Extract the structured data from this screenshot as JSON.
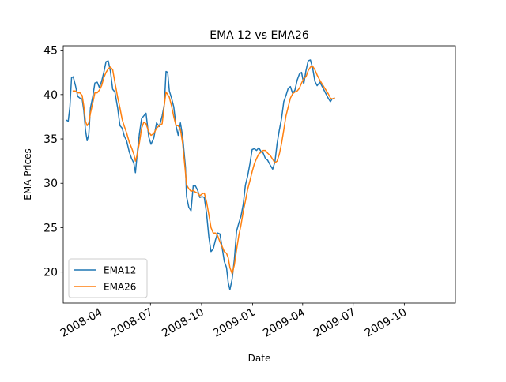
{
  "chart_data": {
    "type": "line",
    "title": "EMA 12 vs EMA26",
    "xlabel": "Date",
    "ylabel": "EMA Prices",
    "x_range": [
      "2008-01-26",
      "2010-01-01"
    ],
    "ylim": [
      16.5,
      45.5
    ],
    "yticks": [
      20,
      25,
      30,
      35,
      40,
      45
    ],
    "xticks": [
      {
        "date": "2008-04-01",
        "label": "2008-04"
      },
      {
        "date": "2008-07-01",
        "label": "2008-07"
      },
      {
        "date": "2008-10-01",
        "label": "2008-10"
      },
      {
        "date": "2009-01-01",
        "label": "2009-01"
      },
      {
        "date": "2009-04-01",
        "label": "2009-04"
      },
      {
        "date": "2009-07-01",
        "label": "2009-07"
      },
      {
        "date": "2009-10-01",
        "label": "2009-10"
      }
    ],
    "grid": false,
    "legend": "lower-left",
    "series": [
      {
        "name": "EMA12",
        "color": "#1f77b4",
        "points": [
          [
            "2008-02-01",
            37.1
          ],
          [
            "2008-02-04",
            37.0
          ],
          [
            "2008-02-07",
            38.6
          ],
          [
            "2008-02-10",
            41.9
          ],
          [
            "2008-02-13",
            42.0
          ],
          [
            "2008-02-17",
            41.0
          ],
          [
            "2008-02-21",
            39.8
          ],
          [
            "2008-02-25",
            39.6
          ],
          [
            "2008-02-29",
            39.5
          ],
          [
            "2008-03-03",
            38.2
          ],
          [
            "2008-03-06",
            36.0
          ],
          [
            "2008-03-09",
            34.8
          ],
          [
            "2008-03-12",
            35.5
          ],
          [
            "2008-03-15",
            38.5
          ],
          [
            "2008-03-19",
            39.7
          ],
          [
            "2008-03-23",
            41.3
          ],
          [
            "2008-03-27",
            41.4
          ],
          [
            "2008-03-31",
            40.8
          ],
          [
            "2008-04-04",
            41.5
          ],
          [
            "2008-04-08",
            42.5
          ],
          [
            "2008-04-12",
            43.7
          ],
          [
            "2008-04-16",
            43.8
          ],
          [
            "2008-04-20",
            42.6
          ],
          [
            "2008-04-24",
            40.6
          ],
          [
            "2008-04-28",
            40.3
          ],
          [
            "2008-05-03",
            38.5
          ],
          [
            "2008-05-07",
            36.5
          ],
          [
            "2008-05-11",
            36.2
          ],
          [
            "2008-05-15",
            35.3
          ],
          [
            "2008-05-19",
            34.8
          ],
          [
            "2008-05-24",
            33.5
          ],
          [
            "2008-05-28",
            32.8
          ],
          [
            "2008-06-01",
            32.3
          ],
          [
            "2008-06-04",
            31.2
          ],
          [
            "2008-06-07",
            33.2
          ],
          [
            "2008-06-11",
            35.5
          ],
          [
            "2008-06-15",
            37.3
          ],
          [
            "2008-06-19",
            37.6
          ],
          [
            "2008-06-23",
            37.9
          ],
          [
            "2008-06-28",
            35.2
          ],
          [
            "2008-07-02",
            34.4
          ],
          [
            "2008-07-07",
            35.1
          ],
          [
            "2008-07-12",
            36.8
          ],
          [
            "2008-07-17",
            36.4
          ],
          [
            "2008-07-22",
            37.6
          ],
          [
            "2008-07-26",
            38.9
          ],
          [
            "2008-07-29",
            42.6
          ],
          [
            "2008-08-01",
            42.5
          ],
          [
            "2008-08-04",
            40.4
          ],
          [
            "2008-08-08",
            39.6
          ],
          [
            "2008-08-12",
            38.6
          ],
          [
            "2008-08-16",
            36.5
          ],
          [
            "2008-08-20",
            35.4
          ],
          [
            "2008-08-24",
            36.8
          ],
          [
            "2008-08-28",
            35.3
          ],
          [
            "2008-09-02",
            31.8
          ],
          [
            "2008-09-04",
            28.5
          ],
          [
            "2008-09-08",
            27.3
          ],
          [
            "2008-09-12",
            26.9
          ],
          [
            "2008-09-16",
            29.7
          ],
          [
            "2008-09-20",
            29.7
          ],
          [
            "2008-09-24",
            29.2
          ],
          [
            "2008-09-28",
            28.4
          ],
          [
            "2008-10-02",
            28.5
          ],
          [
            "2008-10-06",
            28.4
          ],
          [
            "2008-10-10",
            26.6
          ],
          [
            "2008-10-14",
            24.0
          ],
          [
            "2008-10-18",
            22.3
          ],
          [
            "2008-10-22",
            22.6
          ],
          [
            "2008-10-26",
            23.6
          ],
          [
            "2008-10-30",
            24.4
          ],
          [
            "2008-11-03",
            24.3
          ],
          [
            "2008-11-07",
            22.8
          ],
          [
            "2008-11-11",
            21.2
          ],
          [
            "2008-11-15",
            20.5
          ],
          [
            "2008-11-18",
            18.8
          ],
          [
            "2008-11-21",
            18.0
          ],
          [
            "2008-11-25",
            19.2
          ],
          [
            "2008-11-29",
            21.4
          ],
          [
            "2008-12-03",
            24.6
          ],
          [
            "2008-12-07",
            25.5
          ],
          [
            "2008-12-11",
            26.3
          ],
          [
            "2008-12-15",
            27.6
          ],
          [
            "2008-12-19",
            29.8
          ],
          [
            "2008-12-23",
            30.8
          ],
          [
            "2008-12-27",
            32.2
          ],
          [
            "2008-12-31",
            33.8
          ],
          [
            "2009-01-04",
            33.9
          ],
          [
            "2009-01-08",
            33.7
          ],
          [
            "2009-01-12",
            34.0
          ],
          [
            "2009-01-16",
            33.6
          ],
          [
            "2009-01-20",
            33.4
          ],
          [
            "2009-01-24",
            32.8
          ],
          [
            "2009-01-28",
            32.6
          ],
          [
            "2009-02-02",
            32.0
          ],
          [
            "2009-02-06",
            31.6
          ],
          [
            "2009-02-10",
            32.4
          ],
          [
            "2009-02-14",
            34.5
          ],
          [
            "2009-02-18",
            36.0
          ],
          [
            "2009-02-22",
            37.3
          ],
          [
            "2009-02-26",
            39.2
          ],
          [
            "2009-03-02",
            39.9
          ],
          [
            "2009-03-06",
            40.7
          ],
          [
            "2009-03-10",
            40.9
          ],
          [
            "2009-03-14",
            40.1
          ],
          [
            "2009-03-18",
            40.5
          ],
          [
            "2009-03-22",
            41.6
          ],
          [
            "2009-03-26",
            42.3
          ],
          [
            "2009-03-30",
            42.5
          ],
          [
            "2009-04-03",
            41.2
          ],
          [
            "2009-04-07",
            42.7
          ],
          [
            "2009-04-11",
            43.8
          ],
          [
            "2009-04-15",
            43.9
          ],
          [
            "2009-04-19",
            43.0
          ],
          [
            "2009-04-23",
            41.5
          ],
          [
            "2009-04-27",
            41.0
          ],
          [
            "2009-05-02",
            41.4
          ],
          [
            "2009-05-07",
            40.8
          ],
          [
            "2009-05-12",
            40.2
          ],
          [
            "2009-05-17",
            39.6
          ],
          [
            "2009-05-21",
            39.2
          ],
          [
            "2009-05-24",
            39.5
          ],
          [
            "2009-05-28",
            39.6
          ]
        ]
      },
      {
        "name": "EMA26",
        "color": "#ff7f0e",
        "points": [
          [
            "2008-02-13",
            40.4
          ],
          [
            "2008-02-17",
            40.4
          ],
          [
            "2008-02-21",
            40.2
          ],
          [
            "2008-02-25",
            40.2
          ],
          [
            "2008-02-29",
            39.9
          ],
          [
            "2008-03-03",
            38.7
          ],
          [
            "2008-03-06",
            37.0
          ],
          [
            "2008-03-09",
            36.5
          ],
          [
            "2008-03-12",
            36.8
          ],
          [
            "2008-03-15",
            37.9
          ],
          [
            "2008-03-19",
            39.0
          ],
          [
            "2008-03-23",
            40.2
          ],
          [
            "2008-03-27",
            40.2
          ],
          [
            "2008-03-31",
            40.5
          ],
          [
            "2008-04-04",
            41.0
          ],
          [
            "2008-04-08",
            41.9
          ],
          [
            "2008-04-12",
            42.5
          ],
          [
            "2008-04-16",
            42.9
          ],
          [
            "2008-04-20",
            43.1
          ],
          [
            "2008-04-24",
            42.8
          ],
          [
            "2008-04-28",
            41.4
          ],
          [
            "2008-05-03",
            39.7
          ],
          [
            "2008-05-07",
            38.5
          ],
          [
            "2008-05-11",
            37.2
          ],
          [
            "2008-05-15",
            36.4
          ],
          [
            "2008-05-19",
            35.7
          ],
          [
            "2008-05-24",
            34.6
          ],
          [
            "2008-05-28",
            34.0
          ],
          [
            "2008-06-01",
            33.3
          ],
          [
            "2008-06-04",
            32.5
          ],
          [
            "2008-06-07",
            33.2
          ],
          [
            "2008-06-11",
            34.5
          ],
          [
            "2008-06-15",
            36.2
          ],
          [
            "2008-06-19",
            36.9
          ],
          [
            "2008-06-23",
            36.7
          ],
          [
            "2008-06-28",
            35.8
          ],
          [
            "2008-07-02",
            35.4
          ],
          [
            "2008-07-07",
            35.6
          ],
          [
            "2008-07-12",
            36.2
          ],
          [
            "2008-07-17",
            36.5
          ],
          [
            "2008-07-22",
            36.7
          ],
          [
            "2008-07-26",
            38.9
          ],
          [
            "2008-07-29",
            40.3
          ],
          [
            "2008-08-01",
            40.0
          ],
          [
            "2008-08-04",
            39.7
          ],
          [
            "2008-08-08",
            38.7
          ],
          [
            "2008-08-12",
            37.5
          ],
          [
            "2008-08-16",
            36.5
          ],
          [
            "2008-08-20",
            36.5
          ],
          [
            "2008-08-24",
            36.1
          ],
          [
            "2008-08-28",
            34.5
          ],
          [
            "2008-09-02",
            31.2
          ],
          [
            "2008-09-04",
            29.8
          ],
          [
            "2008-09-08",
            29.4
          ],
          [
            "2008-09-12",
            29.1
          ],
          [
            "2008-09-16",
            29.2
          ],
          [
            "2008-09-20",
            29.0
          ],
          [
            "2008-09-24",
            28.9
          ],
          [
            "2008-09-28",
            28.6
          ],
          [
            "2008-10-02",
            28.8
          ],
          [
            "2008-10-06",
            28.9
          ],
          [
            "2008-10-10",
            27.9
          ],
          [
            "2008-10-14",
            26.5
          ],
          [
            "2008-10-18",
            25.0
          ],
          [
            "2008-10-22",
            24.4
          ],
          [
            "2008-10-26",
            24.4
          ],
          [
            "2008-10-30",
            24.1
          ],
          [
            "2008-11-03",
            23.4
          ],
          [
            "2008-11-07",
            22.9
          ],
          [
            "2008-11-11",
            22.3
          ],
          [
            "2008-11-15",
            22.1
          ],
          [
            "2008-11-18",
            21.6
          ],
          [
            "2008-11-21",
            20.5
          ],
          [
            "2008-11-25",
            19.8
          ],
          [
            "2008-11-29",
            20.8
          ],
          [
            "2008-12-03",
            22.5
          ],
          [
            "2008-12-07",
            24.1
          ],
          [
            "2008-12-11",
            25.3
          ],
          [
            "2008-12-15",
            26.8
          ],
          [
            "2008-12-19",
            28.0
          ],
          [
            "2008-12-23",
            29.3
          ],
          [
            "2008-12-27",
            30.3
          ],
          [
            "2008-12-31",
            31.3
          ],
          [
            "2009-01-04",
            32.2
          ],
          [
            "2009-01-08",
            32.8
          ],
          [
            "2009-01-12",
            33.3
          ],
          [
            "2009-01-16",
            33.5
          ],
          [
            "2009-01-20",
            33.7
          ],
          [
            "2009-01-24",
            33.7
          ],
          [
            "2009-01-28",
            33.4
          ],
          [
            "2009-02-02",
            33.1
          ],
          [
            "2009-02-06",
            32.7
          ],
          [
            "2009-02-10",
            32.3
          ],
          [
            "2009-02-14",
            32.5
          ],
          [
            "2009-02-18",
            33.3
          ],
          [
            "2009-02-22",
            34.5
          ],
          [
            "2009-02-26",
            36.0
          ],
          [
            "2009-03-02",
            37.6
          ],
          [
            "2009-03-06",
            38.6
          ],
          [
            "2009-03-10",
            39.6
          ],
          [
            "2009-03-14",
            40.1
          ],
          [
            "2009-03-18",
            40.3
          ],
          [
            "2009-03-22",
            40.4
          ],
          [
            "2009-03-26",
            40.7
          ],
          [
            "2009-03-30",
            41.3
          ],
          [
            "2009-04-03",
            41.8
          ],
          [
            "2009-04-07",
            42.0
          ],
          [
            "2009-04-11",
            42.7
          ],
          [
            "2009-04-15",
            43.1
          ],
          [
            "2009-04-19",
            43.2
          ],
          [
            "2009-04-23",
            42.8
          ],
          [
            "2009-04-27",
            42.2
          ],
          [
            "2009-05-02",
            41.6
          ],
          [
            "2009-05-07",
            41.1
          ],
          [
            "2009-05-12",
            40.6
          ],
          [
            "2009-05-17",
            40.1
          ],
          [
            "2009-05-21",
            39.6
          ],
          [
            "2009-05-24",
            39.5
          ],
          [
            "2009-05-28",
            39.6
          ]
        ]
      }
    ]
  }
}
